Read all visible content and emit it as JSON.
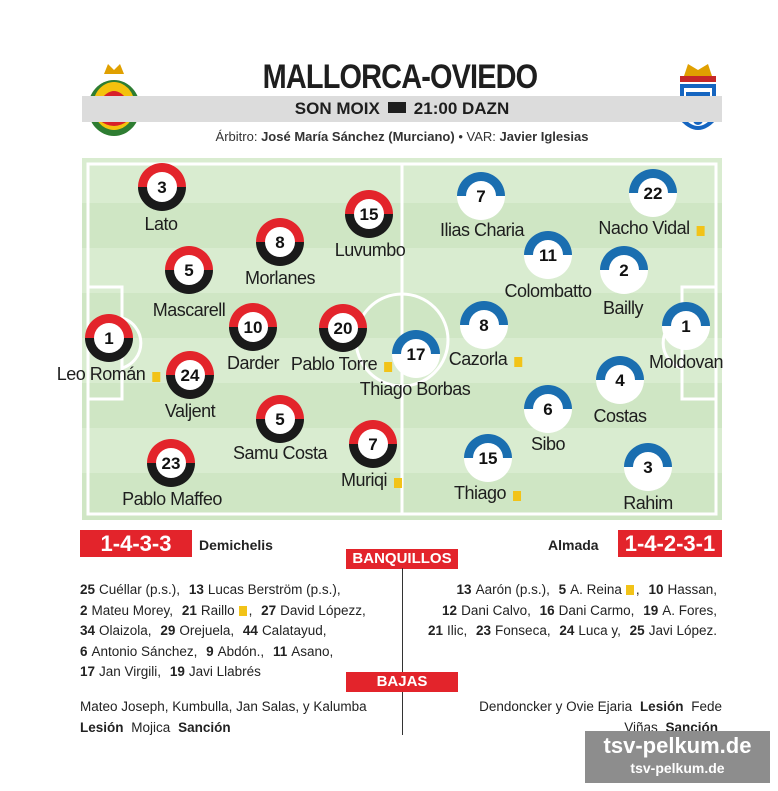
{
  "header": {
    "title": "MALLORCA-OVIEDO",
    "venue": "SON MOIX",
    "time": "21:00 DAZN",
    "referee_label": "Árbitro:",
    "referee": "José María Sánchez (Murciano)",
    "separator": "•",
    "var_label": "VAR:",
    "var": "Javier Iglesias"
  },
  "home": {
    "formation": "1-4-3-3",
    "coach": "Demichelis",
    "players": [
      {
        "number": 3,
        "name": "Lato"
      },
      {
        "number": 8,
        "name": "Morlanes"
      },
      {
        "number": 15,
        "name": "Luvumbo"
      },
      {
        "number": 5,
        "name": "Mascarell"
      },
      {
        "number": 1,
        "name": "Leo Román",
        "yellow_card": true
      },
      {
        "number": 10,
        "name": "Darder"
      },
      {
        "number": 20,
        "name": "Pablo Torre",
        "yellow_card": true
      },
      {
        "number": 24,
        "name": "Valjent"
      },
      {
        "number": 5,
        "name": "Samu Costa"
      },
      {
        "number": 7,
        "name": "Muriqi",
        "yellow_card": true
      },
      {
        "number": 23,
        "name": "Pablo Maffeo"
      }
    ],
    "bench": [
      {
        "number": 25,
        "name": "Cuéllar (p.s.),"
      },
      {
        "number": 13,
        "name": "Lucas Berström (p.s.),"
      },
      {
        "number": 2,
        "name": "Mateu Morey,"
      },
      {
        "number": 21,
        "name": "Raillo",
        "yellow_card": true,
        "after": ","
      },
      {
        "number": 27,
        "name": "David Lópezz,"
      },
      {
        "number": 34,
        "name": "Olaizola,"
      },
      {
        "number": 29,
        "name": "Orejuela,"
      },
      {
        "number": 44,
        "name": "Calatayud,"
      },
      {
        "number": 6,
        "name": "Antonio Sánchez,"
      },
      {
        "number": 9,
        "name": "Abdón.,"
      },
      {
        "number": 11,
        "name": "Asano,"
      },
      {
        "number": 17,
        "name": "Jan Virgili,"
      },
      {
        "number": 19,
        "name": "Javi Llabrés"
      }
    ],
    "absences": [
      {
        "text": "Mateo Joseph, Kumbulla, Jan Salas, y Kalumba",
        "bold": false
      },
      {
        "text": "Lesión",
        "bold": true
      },
      {
        "text": "Mojica",
        "bold": false
      },
      {
        "text": "Sanción",
        "bold": true
      }
    ]
  },
  "away": {
    "formation": "1-4-2-3-1",
    "coach": "Almada",
    "players": [
      {
        "number": 7,
        "name": "Ilias Charia"
      },
      {
        "number": 22,
        "name": "Nacho Vidal",
        "yellow_card": true
      },
      {
        "number": 11,
        "name": "Colombatto"
      },
      {
        "number": 2,
        "name": "Bailly"
      },
      {
        "number": 1,
        "name": "Moldovan"
      },
      {
        "number": 17,
        "name": "Thiago Borbas"
      },
      {
        "number": 8,
        "name": "Cazorla",
        "yellow_card": true
      },
      {
        "number": 4,
        "name": "Costas"
      },
      {
        "number": 6,
        "name": "Sibo"
      },
      {
        "number": 15,
        "name": "Thiago",
        "yellow_card": true
      },
      {
        "number": 3,
        "name": "Rahim"
      }
    ],
    "bench": [
      {
        "number": 13,
        "name": "Aarón (p.s.),"
      },
      {
        "number": 5,
        "name": "A. Reina",
        "yellow_card": true,
        "after": ","
      },
      {
        "number": 10,
        "name": "Hassan,"
      },
      {
        "number": 12,
        "name": "Dani Calvo,"
      },
      {
        "number": 16,
        "name": "Dani Carmo,"
      },
      {
        "number": 19,
        "name": "A. Fores,"
      },
      {
        "number": 21,
        "name": "Ilic,"
      },
      {
        "number": 23,
        "name": "Fonseca,"
      },
      {
        "number": 24,
        "name": "Luca y,"
      },
      {
        "number": 25,
        "name": "Javi López."
      }
    ],
    "absences": [
      {
        "text": "Dendoncker y Ovie Ejaria",
        "bold": false
      },
      {
        "text": "Lesión",
        "bold": true
      },
      {
        "text": "Fede Viñas",
        "bold": false
      },
      {
        "text": "Sanción",
        "bold": true
      }
    ]
  },
  "sections": {
    "bench_title": "BANQUILLOS",
    "absences_title": "BAJAS"
  },
  "watermark": {
    "large": "tsv-pelkum.de",
    "small": "tsv-pelkum.de"
  }
}
